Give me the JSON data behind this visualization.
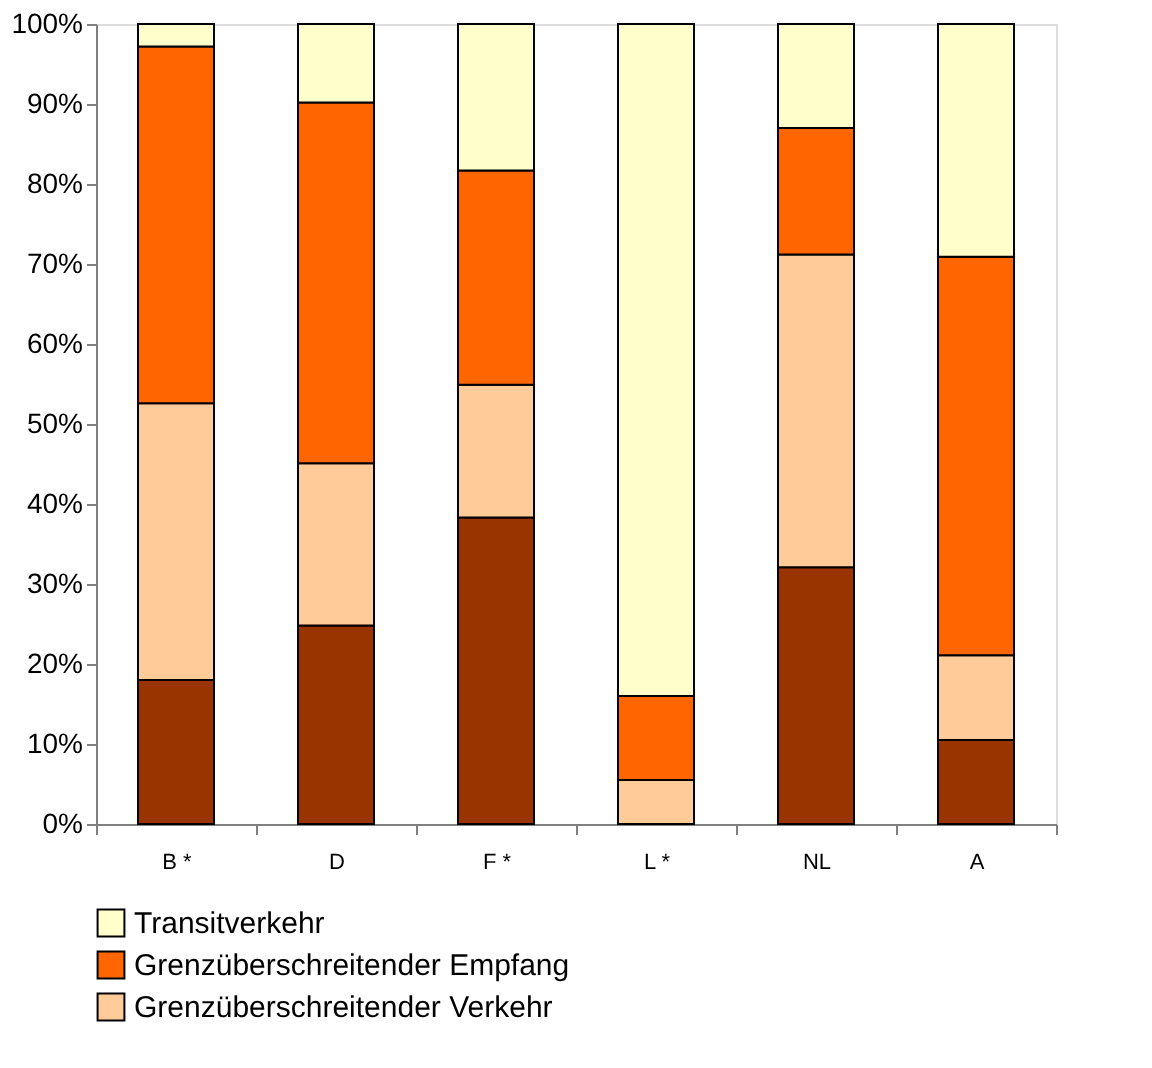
{
  "chart_data": {
    "type": "bar",
    "stacked": true,
    "categories": [
      "B *",
      "D",
      "F *",
      "L *",
      "NL",
      "A"
    ],
    "series": [
      {
        "color": "#993300",
        "values": [
          18.0,
          24.8,
          38.3,
          0,
          32.1,
          10.5
        ]
      },
      {
        "name": "Grenzüberschreitender Verkehr",
        "color": "#ffcc99",
        "values": [
          34.6,
          20.3,
          16.6,
          5.5,
          39.1,
          10.6
        ]
      },
      {
        "name": "Grenzüberschreitender Empfang",
        "color": "#ff6600",
        "values": [
          44.6,
          45.1,
          26.8,
          10.5,
          15.8,
          49.8
        ]
      },
      {
        "name": "Transitverkehr",
        "color": "#ffffcc",
        "values": [
          2.8,
          9.8,
          18.3,
          84.0,
          13.0,
          29.1
        ]
      }
    ],
    "ylim": [
      0,
      100
    ],
    "yticks": [
      {
        "value": 0,
        "label": "0%"
      },
      {
        "value": 10,
        "label": "10%"
      },
      {
        "value": 20,
        "label": "20%"
      },
      {
        "value": 30,
        "label": "30%"
      },
      {
        "value": 40,
        "label": "40%"
      },
      {
        "value": 50,
        "label": "50%"
      },
      {
        "value": 60,
        "label": "60%"
      },
      {
        "value": 70,
        "label": "70%"
      },
      {
        "value": 80,
        "label": "80%"
      },
      {
        "value": 90,
        "label": "90%"
      },
      {
        "value": 100,
        "label": "100%"
      }
    ],
    "grid": false,
    "legend": "bottom"
  }
}
